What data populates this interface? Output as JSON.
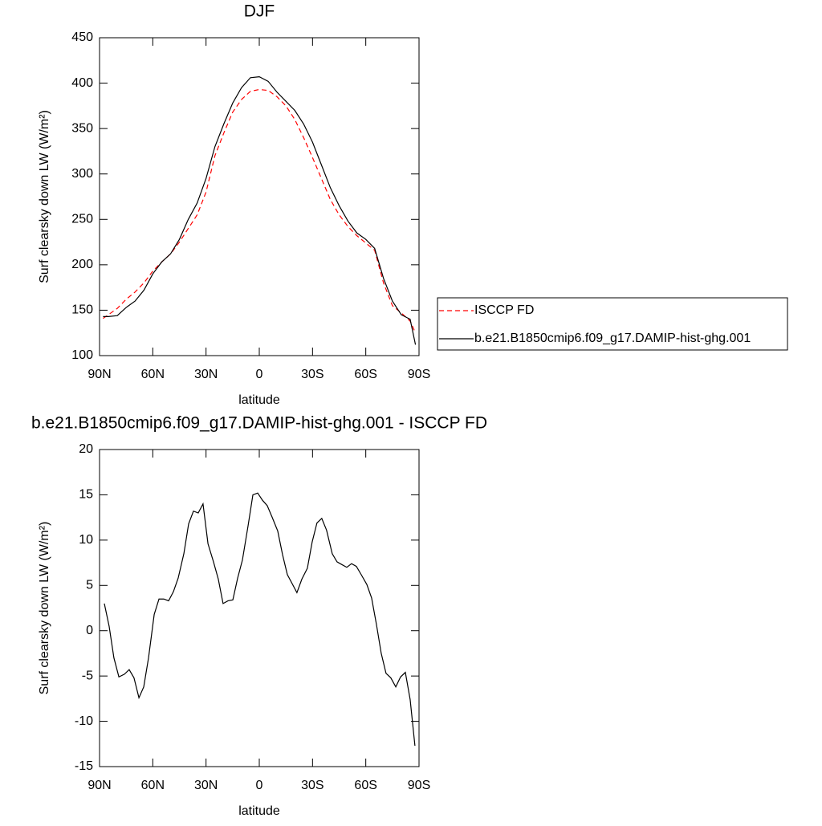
{
  "chart_data": [
    {
      "type": "line",
      "title": "DJF",
      "x_label": "latitude",
      "y_label": "Surf clearsky down LW (W/m²)",
      "x": [
        88,
        85,
        80,
        75,
        70,
        65,
        60,
        55,
        50,
        45,
        40,
        35,
        30,
        25,
        20,
        15,
        10,
        5,
        0,
        -5,
        -10,
        -15,
        -20,
        -25,
        -30,
        -35,
        -40,
        -45,
        -50,
        -55,
        -60,
        -65,
        -70,
        -75,
        -80,
        -85,
        -88
      ],
      "series": [
        {
          "name": "ISCCP FD",
          "color": "#ff0000",
          "style": "dashed",
          "values": [
            141,
            145,
            152,
            162,
            170,
            180,
            193,
            203,
            212,
            225,
            240,
            255,
            280,
            320,
            345,
            368,
            382,
            391,
            393,
            392,
            385,
            375,
            360,
            340,
            318,
            295,
            272,
            255,
            242,
            232,
            224,
            216,
            180,
            155,
            147,
            138,
            125
          ]
        },
        {
          "name": "b.e21.B1850cmip6.f09_g17.DAMIP-hist-ghg.001",
          "color": "#000000",
          "style": "solid",
          "values": [
            143,
            143,
            144,
            153,
            160,
            172,
            190,
            203,
            212,
            228,
            250,
            268,
            295,
            330,
            355,
            378,
            395,
            406,
            407,
            402,
            390,
            380,
            370,
            355,
            335,
            310,
            285,
            265,
            248,
            235,
            228,
            218,
            185,
            160,
            145,
            140,
            112
          ]
        }
      ],
      "xlim": [
        90,
        -90
      ],
      "xticks": [
        {
          "value": 90,
          "label": "90N"
        },
        {
          "value": 60,
          "label": "60N"
        },
        {
          "value": 30,
          "label": "30N"
        },
        0,
        {
          "value": -30,
          "label": "30S"
        },
        {
          "value": -60,
          "label": "60S"
        },
        {
          "value": -90,
          "label": "90S"
        }
      ],
      "ylim": [
        100,
        450
      ],
      "yticks": [
        100,
        150,
        200,
        250,
        300,
        350,
        400,
        450
      ],
      "legend": "right"
    },
    {
      "type": "line",
      "title": "b.e21.B1850cmip6.f09_g17.DAMIP-hist-ghg.001 - ISCCP FD",
      "x_label": "latitude",
      "y_label": "Surf clearsky down LW (W/m²)",
      "x": [
        87.3,
        84.6,
        81.9,
        79.1,
        76.0,
        73.3,
        70.6,
        67.8,
        65.1,
        62.4,
        59.2,
        56.5,
        53.8,
        51.1,
        48.4,
        45.7,
        42.5,
        39.8,
        37.1,
        34.4,
        31.7,
        28.9,
        25.8,
        23.1,
        20.4,
        17.6,
        14.9,
        12.2,
        9.5,
        6.3,
        3.6,
        0.9,
        -1.8,
        -4.5,
        -7.3,
        -10.4,
        -13.1,
        -15.8,
        -18.5,
        -21.2,
        -24.0,
        -27.1,
        -29.8,
        -32.5,
        -35.2,
        -37.9,
        -41.1,
        -43.8,
        -46.5,
        -49.3,
        -52.0,
        -54.7,
        -57.4,
        -60.6,
        -63.3,
        -66.0,
        -68.7,
        -71.4,
        -74.1,
        -76.9,
        -79.6,
        -82.3,
        -85.0,
        -87.7
      ],
      "values": [
        3.0,
        0.5,
        -3.0,
        -5.1,
        -4.8,
        -4.3,
        -5.2,
        -7.4,
        -6.2,
        -3.0,
        1.8,
        3.5,
        3.5,
        3.3,
        4.3,
        5.8,
        8.5,
        11.8,
        13.2,
        13.0,
        14.0,
        9.6,
        7.6,
        5.7,
        3.0,
        3.3,
        3.4,
        5.8,
        7.8,
        11.6,
        15.0,
        15.2,
        14.4,
        13.8,
        12.5,
        11.0,
        8.4,
        6.2,
        5.2,
        4.2,
        5.7,
        6.9,
        9.8,
        11.9,
        12.4,
        11.1,
        8.5,
        7.6,
        7.3,
        7.0,
        7.4,
        7.1,
        6.2,
        5.1,
        3.6,
        0.7,
        -2.5,
        -4.7,
        -5.2,
        -6.2,
        -5.1,
        -4.6,
        -7.6,
        -12.7
      ],
      "color": "#000000",
      "xlim": [
        90,
        -90
      ],
      "xticks": [
        {
          "value": 90,
          "label": "90N"
        },
        {
          "value": 60,
          "label": "60N"
        },
        {
          "value": 30,
          "label": "30N"
        },
        0,
        {
          "value": -30,
          "label": "30S"
        },
        {
          "value": -60,
          "label": "60S"
        },
        {
          "value": -90,
          "label": "90S"
        }
      ],
      "ylim": [
        -15,
        20
      ],
      "yticks": [
        -15,
        -10,
        -5,
        0,
        5,
        10,
        15,
        20
      ]
    }
  ]
}
